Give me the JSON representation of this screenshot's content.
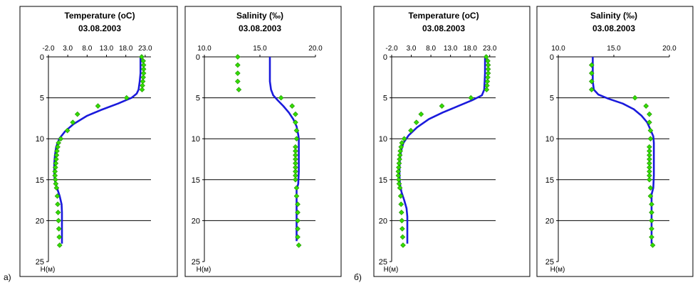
{
  "labels": {
    "part_a": "а)",
    "part_b": "б)"
  },
  "colors": {
    "model": "#1a1adc",
    "observed": "#33dd00",
    "observed_edge": "#208a00",
    "grid": "#000000",
    "panel_border": "#000000"
  },
  "chart_data": [
    {
      "id": "a-temperature",
      "type": "scatter+line",
      "group": "а)",
      "title": "Temperature  (oC)",
      "subtitle": "03.08.2003",
      "ylabel": "H(м)",
      "xlim": [
        -2.0,
        24.5
      ],
      "xticks": [
        "-2.0",
        "3.0",
        "8.0",
        "13.0",
        "18.0",
        "23.0"
      ],
      "xtick_values": [
        -2,
        3,
        8,
        13,
        18,
        23
      ],
      "ylim": [
        0,
        25
      ],
      "yticks": [
        "0",
        "5",
        "10",
        "15",
        "20",
        "25"
      ],
      "ytick_values": [
        0,
        5,
        10,
        15,
        20,
        25
      ],
      "model_line": [
        [
          21.8,
          0
        ],
        [
          21.8,
          1
        ],
        [
          21.8,
          2
        ],
        [
          21.6,
          3
        ],
        [
          21.3,
          4
        ],
        [
          20.8,
          4.5
        ],
        [
          19.5,
          5
        ],
        [
          16.0,
          5.7
        ],
        [
          11.5,
          6.5
        ],
        [
          8.0,
          7.2
        ],
        [
          4.5,
          8.2
        ],
        [
          2.3,
          9.1
        ],
        [
          0.8,
          10
        ],
        [
          0.0,
          11
        ],
        [
          -0.3,
          12
        ],
        [
          -0.5,
          13
        ],
        [
          -0.5,
          14
        ],
        [
          -0.4,
          15
        ],
        [
          0.2,
          16
        ],
        [
          0.9,
          17
        ],
        [
          1.4,
          18
        ],
        [
          1.5,
          19
        ],
        [
          1.5,
          20
        ],
        [
          1.5,
          21
        ],
        [
          1.5,
          22
        ],
        [
          1.5,
          22.8
        ]
      ],
      "observed": [
        [
          22.1,
          0
        ],
        [
          22.5,
          0.5
        ],
        [
          22.6,
          1
        ],
        [
          22.6,
          1.5
        ],
        [
          22.6,
          2
        ],
        [
          22.5,
          2.5
        ],
        [
          22.4,
          3
        ],
        [
          22.3,
          3.5
        ],
        [
          22.2,
          4
        ],
        [
          18.2,
          5
        ],
        [
          10.8,
          6
        ],
        [
          5.5,
          7
        ],
        [
          4.3,
          8
        ],
        [
          2.9,
          9
        ],
        [
          1.2,
          10
        ],
        [
          0.6,
          10.5
        ],
        [
          0.4,
          11
        ],
        [
          0.2,
          11.5
        ],
        [
          0.1,
          12
        ],
        [
          0.0,
          12.5
        ],
        [
          -0.1,
          13
        ],
        [
          -0.2,
          13.5
        ],
        [
          -0.3,
          14
        ],
        [
          -0.3,
          14.5
        ],
        [
          -0.2,
          15
        ],
        [
          -0.1,
          15.5
        ],
        [
          0.1,
          16
        ],
        [
          0.3,
          17
        ],
        [
          0.4,
          18
        ],
        [
          0.5,
          19
        ],
        [
          0.6,
          20
        ],
        [
          0.7,
          21
        ],
        [
          0.8,
          22
        ],
        [
          0.9,
          23
        ]
      ]
    },
    {
      "id": "a-salinity",
      "type": "scatter+line",
      "group": "а)",
      "title": "Salinity (‰)",
      "subtitle": "03.08.2003",
      "ylabel": "H(м)",
      "xlim": [
        10.0,
        20.0
      ],
      "xticks": [
        "10.0",
        "15.0",
        "20.0"
      ],
      "xtick_values": [
        10,
        15,
        20
      ],
      "ylim": [
        0,
        25
      ],
      "yticks": [
        "0",
        "5",
        "10",
        "15",
        "20",
        "25"
      ],
      "ytick_values": [
        0,
        5,
        10,
        15,
        20,
        25
      ],
      "model_line": [
        [
          15.9,
          0
        ],
        [
          15.9,
          1
        ],
        [
          15.9,
          2
        ],
        [
          15.9,
          3
        ],
        [
          16.0,
          4
        ],
        [
          16.2,
          4.7
        ],
        [
          16.6,
          5.3
        ],
        [
          17.1,
          6
        ],
        [
          17.6,
          6.8
        ],
        [
          18.0,
          7.6
        ],
        [
          18.3,
          8.5
        ],
        [
          18.45,
          9.5
        ],
        [
          18.5,
          10
        ],
        [
          18.5,
          12
        ],
        [
          18.5,
          14
        ],
        [
          18.45,
          15.5
        ],
        [
          18.3,
          16.2
        ],
        [
          18.3,
          17
        ],
        [
          18.3,
          18
        ],
        [
          18.3,
          20
        ],
        [
          18.3,
          22.5
        ]
      ],
      "observed": [
        [
          13.0,
          0
        ],
        [
          13.0,
          1
        ],
        [
          13.0,
          2
        ],
        [
          13.0,
          3
        ],
        [
          13.1,
          4
        ],
        [
          16.9,
          5
        ],
        [
          17.9,
          6
        ],
        [
          18.2,
          7
        ],
        [
          18.2,
          8
        ],
        [
          18.3,
          9
        ],
        [
          18.3,
          10
        ],
        [
          18.2,
          11
        ],
        [
          18.2,
          11.5
        ],
        [
          18.2,
          12
        ],
        [
          18.2,
          12.5
        ],
        [
          18.2,
          13
        ],
        [
          18.2,
          13.5
        ],
        [
          18.2,
          14
        ],
        [
          18.2,
          14.5
        ],
        [
          18.2,
          15
        ],
        [
          18.3,
          16
        ],
        [
          18.3,
          17
        ],
        [
          18.4,
          18
        ],
        [
          18.4,
          19
        ],
        [
          18.4,
          20
        ],
        [
          18.4,
          21
        ],
        [
          18.4,
          22
        ],
        [
          18.5,
          23
        ]
      ]
    },
    {
      "id": "b-temperature",
      "type": "scatter+line",
      "group": "б)",
      "title": "Temperature  (oC)",
      "subtitle": "03.08.2003",
      "ylabel": "H(м)",
      "xlim": [
        -2.0,
        24.5
      ],
      "xticks": [
        "-2.0",
        "3.0",
        "8.0",
        "13.0",
        "18.0",
        "23.0"
      ],
      "xtick_values": [
        -2,
        3,
        8,
        13,
        18,
        23
      ],
      "ylim": [
        0,
        25
      ],
      "yticks": [
        "0",
        "5",
        "10",
        "15",
        "20",
        "25"
      ],
      "ytick_values": [
        0,
        5,
        10,
        15,
        20,
        25
      ],
      "model_line": [
        [
          21.8,
          0
        ],
        [
          21.8,
          1
        ],
        [
          21.8,
          2
        ],
        [
          21.7,
          3
        ],
        [
          21.6,
          4
        ],
        [
          21.0,
          4.7
        ],
        [
          18.5,
          5.3
        ],
        [
          15.0,
          6
        ],
        [
          11.0,
          6.8
        ],
        [
          7.5,
          7.6
        ],
        [
          4.5,
          8.6
        ],
        [
          2.3,
          9.6
        ],
        [
          1.0,
          10.5
        ],
        [
          0.4,
          11.5
        ],
        [
          0.1,
          12.5
        ],
        [
          0.0,
          13.5
        ],
        [
          0.0,
          14.5
        ],
        [
          0.1,
          15.5
        ],
        [
          0.5,
          16.5
        ],
        [
          1.2,
          17.5
        ],
        [
          1.8,
          18.5
        ],
        [
          2.0,
          19.5
        ],
        [
          2.0,
          21
        ],
        [
          2.0,
          22.8
        ]
      ],
      "observed": [
        [
          22.1,
          0
        ],
        [
          22.5,
          0.5
        ],
        [
          22.6,
          1
        ],
        [
          22.6,
          1.5
        ],
        [
          22.6,
          2
        ],
        [
          22.5,
          2.5
        ],
        [
          22.4,
          3
        ],
        [
          22.3,
          3.5
        ],
        [
          22.2,
          4
        ],
        [
          18.2,
          5
        ],
        [
          10.8,
          6
        ],
        [
          5.5,
          7
        ],
        [
          4.3,
          8
        ],
        [
          2.9,
          9
        ],
        [
          1.2,
          10
        ],
        [
          0.6,
          10.5
        ],
        [
          0.4,
          11
        ],
        [
          0.2,
          11.5
        ],
        [
          0.1,
          12
        ],
        [
          0.0,
          12.5
        ],
        [
          -0.1,
          13
        ],
        [
          -0.2,
          13.5
        ],
        [
          -0.3,
          14
        ],
        [
          -0.3,
          14.5
        ],
        [
          -0.2,
          15
        ],
        [
          -0.1,
          15.5
        ],
        [
          0.1,
          16
        ],
        [
          0.3,
          17
        ],
        [
          0.4,
          18
        ],
        [
          0.5,
          19
        ],
        [
          0.6,
          20
        ],
        [
          0.7,
          21
        ],
        [
          0.8,
          22
        ],
        [
          0.9,
          23
        ]
      ]
    },
    {
      "id": "b-salinity",
      "type": "scatter+line",
      "group": "б)",
      "title": "Salinity (‰)",
      "subtitle": "03.08.2003",
      "ylabel": "H(м)",
      "xlim": [
        10.0,
        20.0
      ],
      "xticks": [
        "10.0",
        "15.0",
        "20.0"
      ],
      "xtick_values": [
        10,
        15,
        20
      ],
      "ylim": [
        0,
        25
      ],
      "yticks": [
        "0",
        "5",
        "10",
        "15",
        "20",
        "25"
      ],
      "ytick_values": [
        0,
        5,
        10,
        15,
        20,
        25
      ],
      "model_line": [
        [
          13.1,
          0
        ],
        [
          13.1,
          1
        ],
        [
          13.1,
          2
        ],
        [
          13.1,
          3
        ],
        [
          13.2,
          4
        ],
        [
          13.6,
          4.6
        ],
        [
          14.5,
          5.1
        ],
        [
          15.8,
          5.7
        ],
        [
          16.8,
          6.4
        ],
        [
          17.5,
          7.2
        ],
        [
          18.0,
          8
        ],
        [
          18.3,
          8.9
        ],
        [
          18.55,
          9.7
        ],
        [
          18.6,
          10.5
        ],
        [
          18.6,
          12.5
        ],
        [
          18.6,
          14.5
        ],
        [
          18.55,
          16
        ],
        [
          18.4,
          16.8
        ],
        [
          18.4,
          18
        ],
        [
          18.4,
          20
        ],
        [
          18.4,
          22.8
        ]
      ],
      "observed": [
        [
          13.0,
          1
        ],
        [
          13.0,
          2
        ],
        [
          13.0,
          3
        ],
        [
          13.0,
          4
        ],
        [
          16.9,
          5
        ],
        [
          17.9,
          6
        ],
        [
          18.2,
          7
        ],
        [
          18.2,
          8
        ],
        [
          18.3,
          9
        ],
        [
          18.3,
          10
        ],
        [
          18.2,
          11
        ],
        [
          18.2,
          11.5
        ],
        [
          18.2,
          12
        ],
        [
          18.2,
          12.5
        ],
        [
          18.2,
          13
        ],
        [
          18.2,
          13.5
        ],
        [
          18.2,
          14
        ],
        [
          18.2,
          14.5
        ],
        [
          18.2,
          15
        ],
        [
          18.3,
          16
        ],
        [
          18.3,
          17
        ],
        [
          18.4,
          18
        ],
        [
          18.4,
          19
        ],
        [
          18.4,
          20
        ],
        [
          18.4,
          21
        ],
        [
          18.4,
          22
        ],
        [
          18.5,
          23
        ]
      ]
    }
  ]
}
